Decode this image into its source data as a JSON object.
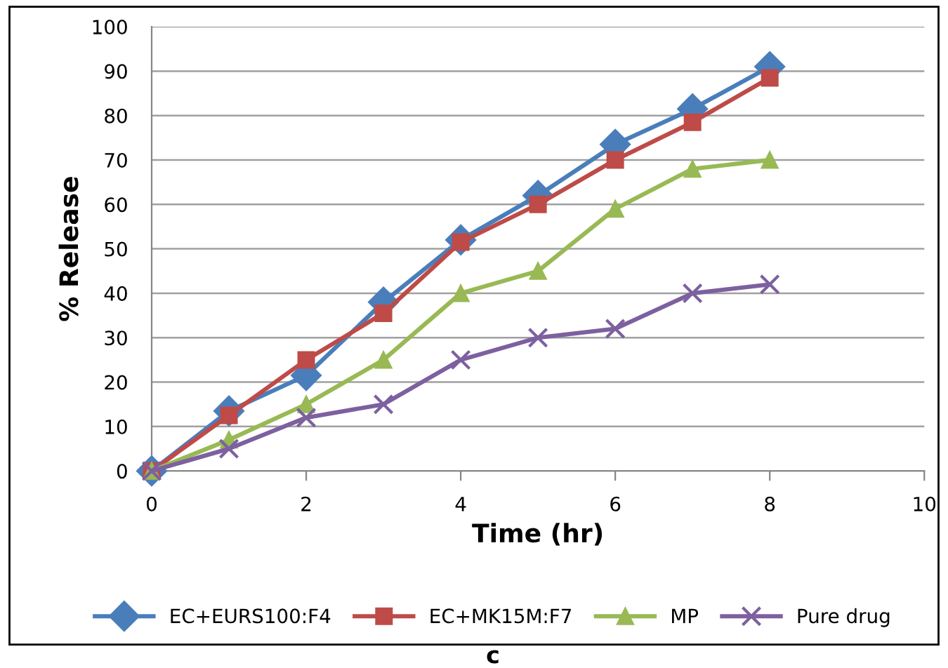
{
  "chart_data": {
    "type": "line",
    "xlabel": "Time (hr)",
    "ylabel": "% Release",
    "x": [
      0,
      1,
      2,
      3,
      4,
      5,
      6,
      7,
      8
    ],
    "series": [
      {
        "name": "EC+EURS100:F4",
        "color": "#4a7ebb",
        "marker": "diamond",
        "values": [
          0,
          13.5,
          21.5,
          38,
          52,
          62,
          73.5,
          81.5,
          91
        ]
      },
      {
        "name": "EC+MK15M:F7",
        "color": "#be4b48",
        "marker": "square",
        "values": [
          0,
          12.5,
          25,
          35.5,
          51.5,
          60,
          70,
          78.5,
          88.5
        ]
      },
      {
        "name": "MP",
        "color": "#98b954",
        "marker": "triangle",
        "values": [
          0,
          7,
          15,
          25,
          40,
          45,
          59,
          68,
          70
        ]
      },
      {
        "name": "Pure drug",
        "color": "#7d60a0",
        "marker": "cross",
        "values": [
          0,
          5,
          12,
          15,
          25,
          30,
          32,
          40,
          42
        ]
      }
    ],
    "xlim": [
      0,
      10
    ],
    "xticks": [
      0,
      2,
      4,
      6,
      8,
      10
    ],
    "ylim": [
      0,
      100
    ],
    "yticks": [
      0,
      10,
      20,
      30,
      40,
      50,
      60,
      70,
      80,
      90,
      100
    ],
    "grid": "y",
    "legend": "bottom",
    "line_style": "solid",
    "annotations": [
      "c"
    ]
  }
}
